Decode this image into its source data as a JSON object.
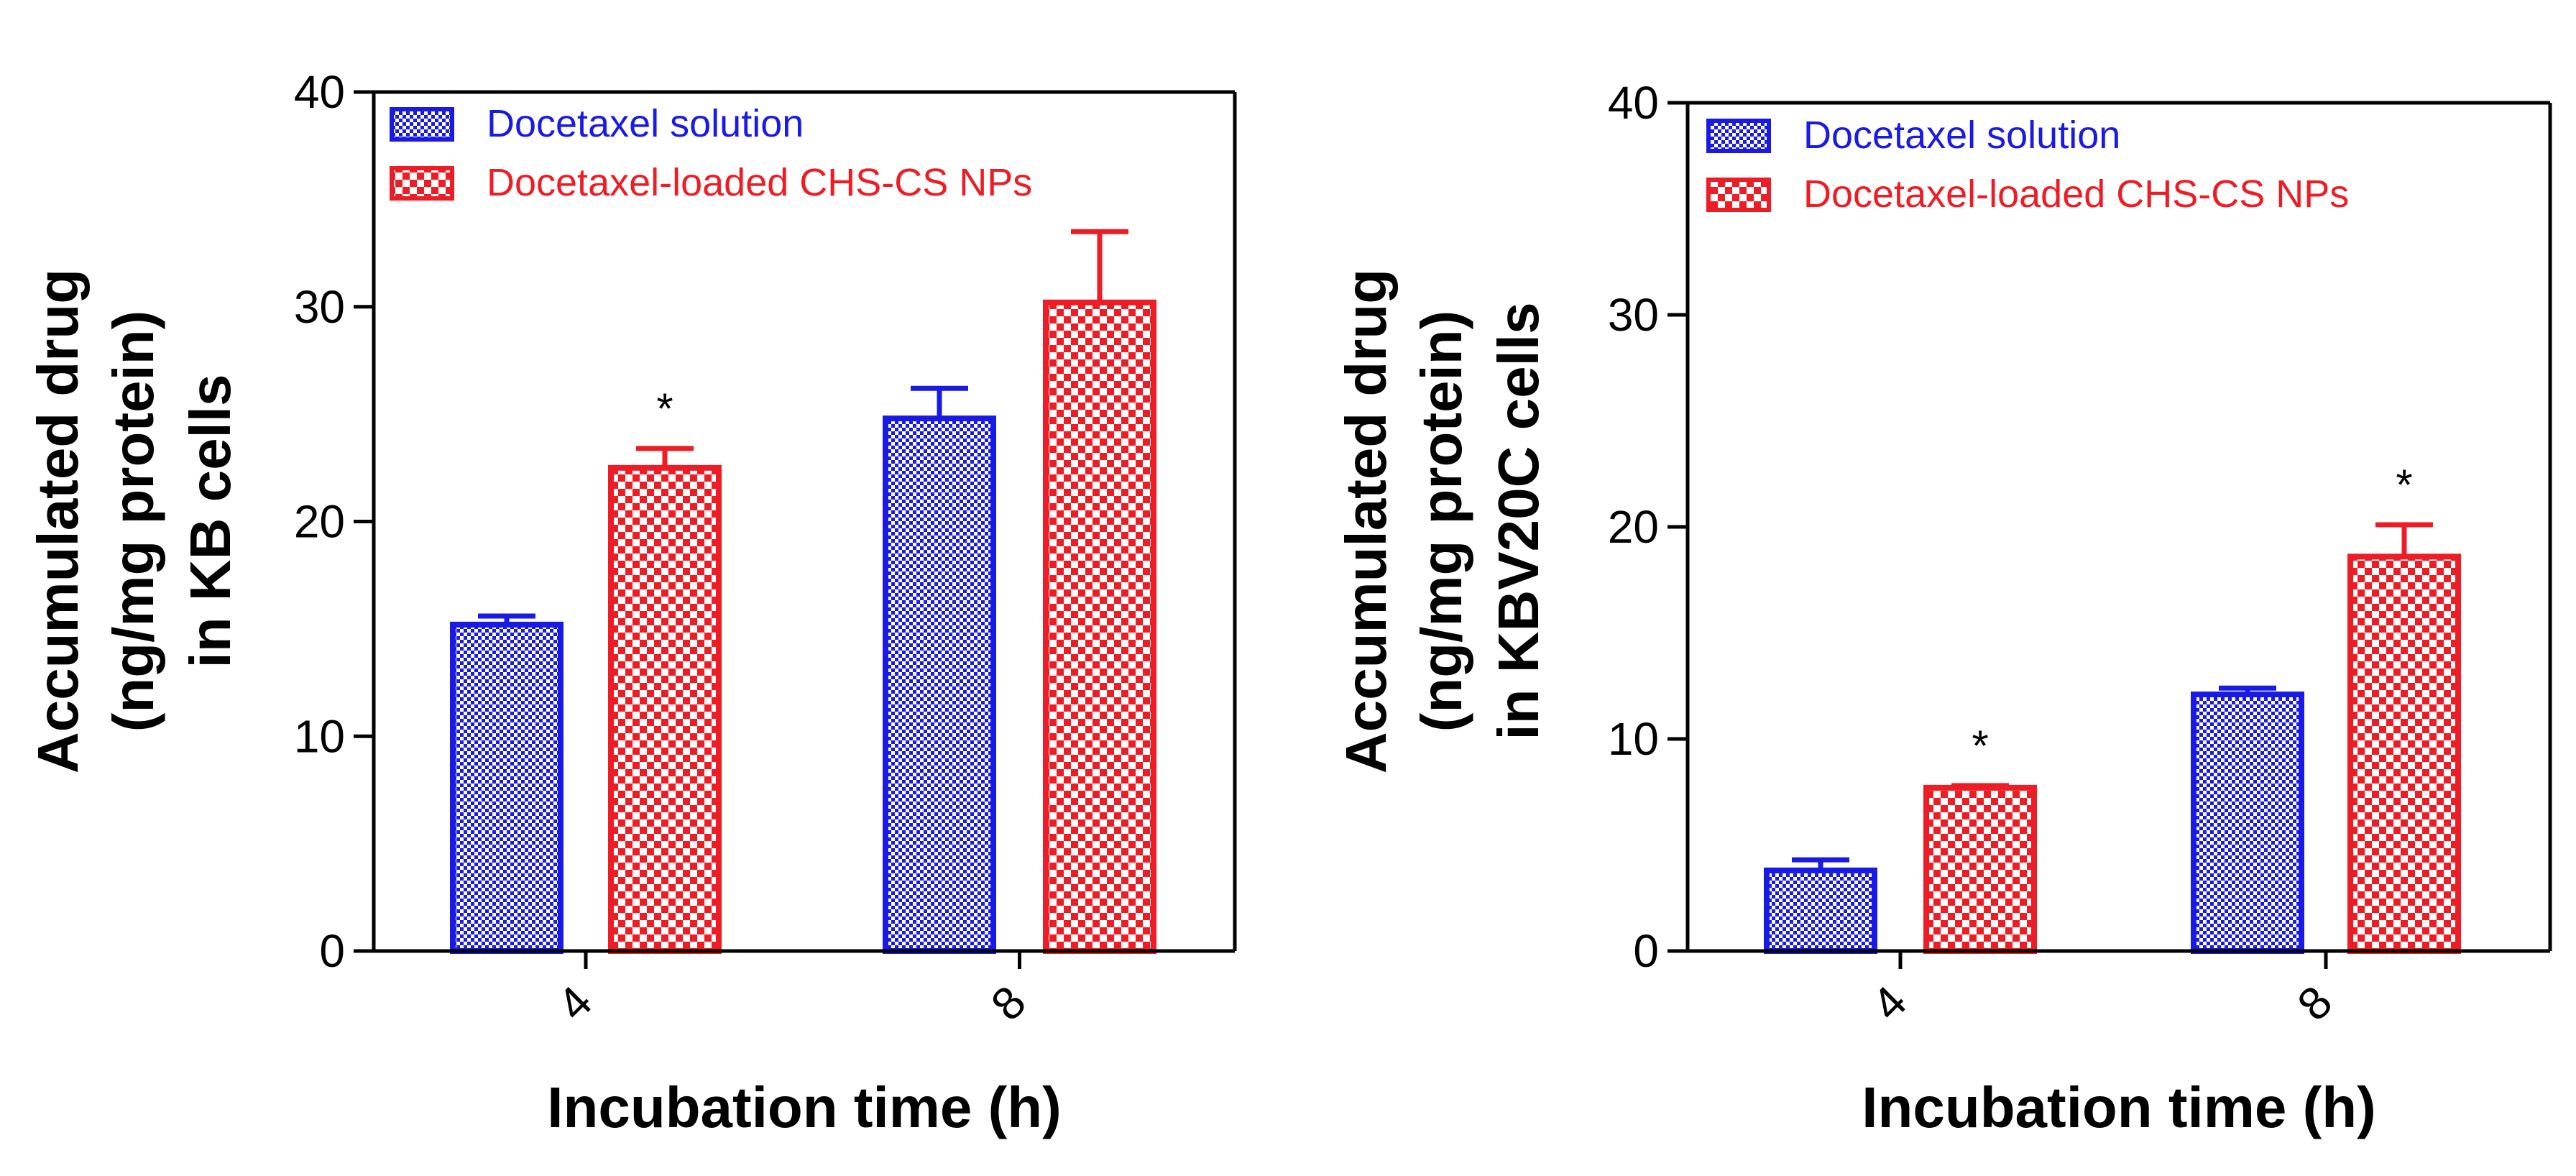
{
  "chart_data": [
    {
      "type": "bar",
      "title": "",
      "xlabel": "Incubation time (h)",
      "ylabel": [
        "Accumulated drug",
        "(ng/mg protein)",
        "in KB cells"
      ],
      "categories": [
        "4",
        "8"
      ],
      "ylim": [
        0,
        40
      ],
      "yticks": [
        "0",
        "10",
        "20",
        "30",
        "40"
      ],
      "legend_position": "top-left",
      "series": [
        {
          "name": "Docetaxel solution",
          "color": "#1a1ae6",
          "values": [
            15.2,
            24.8
          ],
          "errors": [
            0.4,
            1.4
          ]
        },
        {
          "name": "Docetaxel-loaded CHS-CS NPs",
          "color": "#ee1c24",
          "values": [
            22.5,
            30.2
          ],
          "errors": [
            0.9,
            3.3
          ]
        }
      ],
      "annotations": [
        {
          "series": 1,
          "category": 0,
          "text": "*"
        }
      ]
    },
    {
      "type": "bar",
      "title": "",
      "xlabel": "Incubation time (h)",
      "ylabel": [
        "Accumulated drug",
        "(ng/mg protein)",
        "in KBV20C cells"
      ],
      "categories": [
        "4",
        "8"
      ],
      "ylim": [
        0,
        40
      ],
      "yticks": [
        "0",
        "10",
        "20",
        "30",
        "40"
      ],
      "legend_position": "top-left",
      "series": [
        {
          "name": "Docetaxel solution",
          "color": "#1a1ae6",
          "values": [
            3.8,
            12.1
          ],
          "errors": [
            0.5,
            0.3
          ]
        },
        {
          "name": "Docetaxel-loaded CHS-CS NPs",
          "color": "#ee1c24",
          "values": [
            7.7,
            18.6
          ],
          "errors": [
            0.1,
            1.5
          ]
        }
      ],
      "annotations": [
        {
          "series": 1,
          "category": 0,
          "text": "*"
        },
        {
          "series": 1,
          "category": 1,
          "text": "*"
        }
      ]
    }
  ]
}
